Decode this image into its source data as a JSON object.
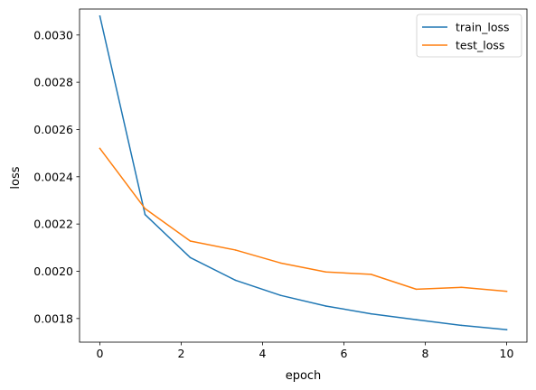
{
  "chart_data": {
    "type": "line",
    "title": "",
    "xlabel": "epoch",
    "ylabel": "loss",
    "xlim": [
      -0.5,
      10.5
    ],
    "ylim": [
      0.0017,
      0.00311
    ],
    "xticks": [
      0,
      2,
      4,
      6,
      8,
      10
    ],
    "xtick_labels": [
      "0",
      "2",
      "4",
      "6",
      "8",
      "10"
    ],
    "yticks": [
      0.0018,
      0.002,
      0.0022,
      0.0024,
      0.0026,
      0.0028,
      0.003
    ],
    "ytick_labels": [
      "0.0018",
      "0.0020",
      "0.0022",
      "0.0024",
      "0.0026",
      "0.0028",
      "0.0030"
    ],
    "grid": false,
    "legend_position": "top-right",
    "x": [
      0,
      1.111,
      2.222,
      3.333,
      4.444,
      5.556,
      6.667,
      7.778,
      8.889,
      10
    ],
    "series": [
      {
        "name": "train_loss",
        "color": "#1f77b4",
        "values": [
          0.00308,
          0.00224,
          0.002058,
          0.001962,
          0.001898,
          0.001853,
          0.00182,
          0.001795,
          0.001771,
          0.001753
        ]
      },
      {
        "name": "test_loss",
        "color": "#ff7f0e",
        "values": [
          0.00252,
          0.002265,
          0.002128,
          0.00209,
          0.002035,
          0.001997,
          0.001987,
          0.001924,
          0.001932,
          0.001915
        ]
      }
    ]
  }
}
